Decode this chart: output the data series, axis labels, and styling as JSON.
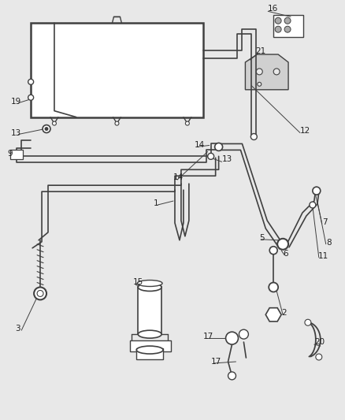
{
  "bg_color": "#e8e8e8",
  "line_color": "#404040",
  "label_color": "#222222",
  "lw_main": 1.3,
  "lw_thick": 1.8,
  "lw_thin": 0.7,
  "fs_label": 7.5
}
